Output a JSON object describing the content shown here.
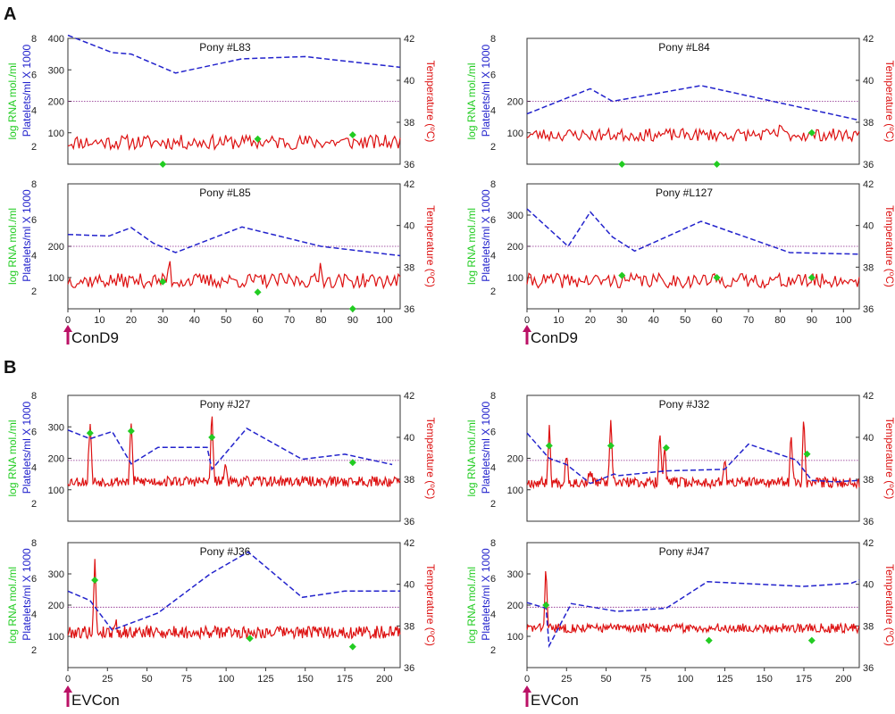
{
  "figure": {
    "sections": [
      {
        "label": "A",
        "marker_label": "ConD9"
      },
      {
        "label": "B",
        "marker_label": "EVCon"
      }
    ],
    "axis_labels": {
      "rna": "log RNA mol./ml",
      "platelets": "Platelets/ml X 1000",
      "temperature_main": "Temperature (",
      "temperature_sup": "o",
      "temperature_end": "C)"
    },
    "colors": {
      "rna": "#22cc22",
      "platelets": "#2222cc",
      "temperature": "#dd1111",
      "threshold": "#882288",
      "marker": "#bb1166"
    }
  },
  "chart_data": [
    {
      "type": "line",
      "title": "Pony #L83",
      "section": "A",
      "xlim": [
        0,
        105
      ],
      "x_ticks": [],
      "temp_ylim": [
        36,
        42
      ],
      "threshold_c": 39,
      "rna_ticks": [
        2,
        4,
        6,
        8
      ],
      "platelet_ticks": [
        100,
        200,
        300,
        400
      ],
      "temp_ticks": [
        36,
        38,
        40,
        42
      ],
      "platelets": [
        [
          0,
          410
        ],
        [
          14,
          355
        ],
        [
          20,
          350
        ],
        [
          34,
          290
        ],
        [
          55,
          335
        ],
        [
          75,
          342
        ],
        [
          105,
          308
        ]
      ],
      "rna": [
        [
          30,
          36.0
        ],
        [
          60,
          37.2
        ],
        [
          90,
          37.4
        ]
      ],
      "temperature_seed": 11,
      "temperature_base": 37.05,
      "temperature_noise": 0.35,
      "temperature_spikes": []
    },
    {
      "type": "line",
      "title": "Pony #L84",
      "section": "A",
      "xlim": [
        0,
        105
      ],
      "x_ticks": [],
      "temp_ylim": [
        36,
        42
      ],
      "threshold_c": 39,
      "rna_ticks": [
        2,
        4,
        6,
        8
      ],
      "platelet_ticks": [
        100,
        200
      ],
      "temp_ticks": [
        36,
        38,
        40,
        42
      ],
      "platelets": [
        [
          0,
          160
        ],
        [
          20,
          240
        ],
        [
          27,
          200
        ],
        [
          55,
          250
        ],
        [
          80,
          195
        ],
        [
          105,
          140
        ]
      ],
      "rna": [
        [
          30,
          36.0
        ],
        [
          60,
          36.0
        ],
        [
          90,
          37.5
        ]
      ],
      "temperature_seed": 23,
      "temperature_base": 37.4,
      "temperature_noise": 0.3,
      "temperature_spikes": [
        [
          80,
          38.1
        ]
      ]
    },
    {
      "type": "line",
      "title": "Pony #L85",
      "section": "A",
      "xlim": [
        0,
        105
      ],
      "x_ticks": [
        0,
        10,
        20,
        30,
        40,
        50,
        60,
        70,
        80,
        90,
        100
      ],
      "temp_ylim": [
        36,
        42
      ],
      "threshold_c": 39,
      "rna_ticks": [
        2,
        4,
        6,
        8
      ],
      "platelet_ticks": [
        100,
        200
      ],
      "temp_ticks": [
        36,
        38,
        40,
        42
      ],
      "platelets": [
        [
          0,
          238
        ],
        [
          13,
          233
        ],
        [
          20,
          260
        ],
        [
          27,
          210
        ],
        [
          34,
          180
        ],
        [
          55,
          262
        ],
        [
          80,
          200
        ],
        [
          105,
          170
        ]
      ],
      "rna": [
        [
          30,
          37.3
        ],
        [
          60,
          36.8
        ],
        [
          90,
          36.0
        ]
      ],
      "temperature_seed": 37,
      "temperature_base": 37.35,
      "temperature_noise": 0.35,
      "temperature_spikes": [
        [
          32,
          38.4
        ],
        [
          80,
          38.4
        ]
      ]
    },
    {
      "type": "line",
      "title": "Pony #L127",
      "section": "A",
      "xlim": [
        0,
        105
      ],
      "x_ticks": [
        0,
        10,
        20,
        30,
        40,
        50,
        60,
        70,
        80,
        90,
        100
      ],
      "temp_ylim": [
        36,
        42
      ],
      "threshold_c": 39,
      "rna_ticks": [
        2,
        4,
        6,
        8
      ],
      "platelet_ticks": [
        100,
        200,
        300
      ],
      "temp_ticks": [
        36,
        38,
        40,
        42
      ],
      "platelets": [
        [
          0,
          320
        ],
        [
          13,
          200
        ],
        [
          20,
          310
        ],
        [
          27,
          230
        ],
        [
          34,
          185
        ],
        [
          55,
          280
        ],
        [
          83,
          180
        ],
        [
          105,
          175
        ]
      ],
      "rna": [
        [
          30,
          37.6
        ],
        [
          60,
          37.5
        ],
        [
          90,
          37.5
        ]
      ],
      "temperature_seed": 41,
      "temperature_base": 37.35,
      "temperature_noise": 0.35,
      "temperature_spikes": []
    },
    {
      "type": "line",
      "title": "Pony #J27",
      "section": "B",
      "xlim": [
        0,
        210
      ],
      "x_ticks": [],
      "temp_ylim": [
        36,
        42
      ],
      "threshold_c": 38.9,
      "rna_ticks": [
        2,
        4,
        6,
        8
      ],
      "platelet_ticks": [
        100,
        200,
        300
      ],
      "temp_ticks": [
        36,
        38,
        40,
        42
      ],
      "platelets": [
        [
          0,
          290
        ],
        [
          14,
          262
        ],
        [
          28,
          285
        ],
        [
          40,
          182
        ],
        [
          57,
          235
        ],
        [
          88,
          235
        ],
        [
          91,
          165
        ],
        [
          113,
          295
        ],
        [
          148,
          197
        ],
        [
          175,
          213
        ],
        [
          205,
          180
        ]
      ],
      "rna": [
        [
          14,
          40.2
        ],
        [
          40,
          40.3
        ],
        [
          91,
          40.0
        ],
        [
          180,
          38.8
        ]
      ],
      "temperature_seed": 53,
      "temperature_base": 37.9,
      "temperature_noise": 0.25,
      "temperature_spikes": [
        [
          14,
          41.0
        ],
        [
          40,
          40.8
        ],
        [
          91,
          41.2
        ],
        [
          100,
          38.8
        ]
      ]
    },
    {
      "type": "line",
      "title": "Pony #J32",
      "section": "B",
      "xlim": [
        0,
        210
      ],
      "x_ticks": [],
      "temp_ylim": [
        36,
        42
      ],
      "threshold_c": 38.9,
      "rna_ticks": [
        2,
        4,
        6,
        8
      ],
      "platelet_ticks": [
        100,
        200
      ],
      "temp_ticks": [
        36,
        38,
        40,
        42
      ],
      "platelets": [
        [
          0,
          280
        ],
        [
          14,
          200
        ],
        [
          25,
          180
        ],
        [
          40,
          120
        ],
        [
          55,
          150
        ],
        [
          58,
          145
        ],
        [
          88,
          160
        ],
        [
          125,
          165
        ],
        [
          140,
          245
        ],
        [
          170,
          195
        ],
        [
          180,
          130
        ],
        [
          195,
          125
        ],
        [
          210,
          130
        ]
      ],
      "rna": [
        [
          14,
          39.6
        ],
        [
          53,
          39.6
        ],
        [
          88,
          39.5
        ],
        [
          177,
          39.2
        ]
      ],
      "temperature_seed": 67,
      "temperature_base": 37.85,
      "temperature_noise": 0.25,
      "temperature_spikes": [
        [
          14,
          40.6
        ],
        [
          25,
          39.5
        ],
        [
          40,
          38.6
        ],
        [
          53,
          40.8
        ],
        [
          84,
          40.5
        ],
        [
          87,
          39.5
        ],
        [
          125,
          39.0
        ],
        [
          167,
          40.3
        ],
        [
          175,
          41.2
        ]
      ]
    },
    {
      "type": "line",
      "title": "Pony #J36",
      "section": "B",
      "xlim": [
        0,
        210
      ],
      "x_ticks": [
        0,
        25,
        50,
        75,
        100,
        125,
        150,
        175,
        200
      ],
      "temp_ylim": [
        36,
        42
      ],
      "threshold_c": 38.9,
      "rna_ticks": [
        2,
        4,
        6,
        8
      ],
      "platelet_ticks": [
        100,
        200,
        300
      ],
      "temp_ticks": [
        36,
        38,
        40,
        42
      ],
      "platelets": [
        [
          0,
          245
        ],
        [
          14,
          215
        ],
        [
          28,
          120
        ],
        [
          57,
          175
        ],
        [
          90,
          300
        ],
        [
          114,
          370
        ],
        [
          148,
          225
        ],
        [
          175,
          245
        ],
        [
          210,
          245
        ]
      ],
      "rna": [
        [
          17,
          40.2
        ],
        [
          115,
          37.4
        ],
        [
          180,
          37.0
        ]
      ],
      "temperature_seed": 79,
      "temperature_base": 37.7,
      "temperature_noise": 0.3,
      "temperature_spikes": [
        [
          17,
          41.1
        ],
        [
          30,
          38.3
        ]
      ]
    },
    {
      "type": "line",
      "title": "Pony #J47",
      "section": "B",
      "xlim": [
        0,
        210
      ],
      "x_ticks": [
        0,
        25,
        50,
        75,
        100,
        125,
        150,
        175,
        200
      ],
      "temp_ylim": [
        36,
        42
      ],
      "threshold_c": 38.9,
      "rna_ticks": [
        2,
        4,
        6,
        8
      ],
      "platelet_ticks": [
        100,
        200,
        300
      ],
      "temp_ticks": [
        36,
        38,
        40,
        42
      ],
      "platelets": [
        [
          0,
          208
        ],
        [
          12,
          190
        ],
        [
          14,
          70
        ],
        [
          28,
          205
        ],
        [
          57,
          180
        ],
        [
          88,
          190
        ],
        [
          114,
          275
        ],
        [
          175,
          260
        ],
        [
          205,
          270
        ],
        [
          210,
          280
        ]
      ],
      "rna": [
        [
          12,
          39.0
        ],
        [
          115,
          37.3
        ],
        [
          180,
          37.3
        ]
      ],
      "temperature_seed": 83,
      "temperature_base": 37.9,
      "temperature_noise": 0.22,
      "temperature_spikes": [
        [
          12,
          40.9
        ]
      ]
    }
  ]
}
